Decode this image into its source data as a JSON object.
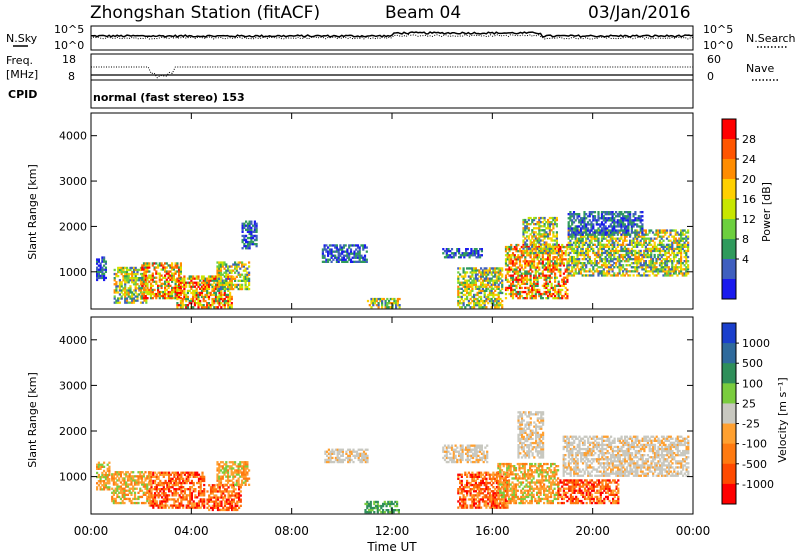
{
  "header": {
    "station": "Zhongshan Station (fitACF)",
    "beam": "Beam 04",
    "date": "03/Jan/2016"
  },
  "noise_panel": {
    "left_label": "N.Sky",
    "left_ticks": [
      "10^5",
      "10^0"
    ],
    "right_label": "N.Search",
    "right_ticks": [
      "10^5",
      "10^0"
    ]
  },
  "freq_panel": {
    "left_label_1": "Freq.",
    "left_label_2": "[MHz]",
    "left_ticks": [
      "18",
      "8"
    ],
    "right_label": "Nave",
    "right_ticks": [
      "60",
      "0"
    ]
  },
  "cpid_panel": {
    "label": "CPID",
    "text": "normal (fast stereo) 153"
  },
  "x_axis": {
    "title": "Time UT",
    "ticks": [
      "00:00",
      "04:00",
      "08:00",
      "12:00",
      "16:00",
      "20:00",
      "00:00"
    ]
  },
  "power_panel": {
    "ylabel": "Slant Range [km]",
    "yticks": [
      "1000",
      "2000",
      "3000",
      "4000"
    ],
    "colorbar_title": "Power [dB]",
    "colorbar_ticks": [
      "28",
      "24",
      "20",
      "16",
      "12",
      "8",
      "4"
    ],
    "colors": [
      "#ff0000",
      "#ff5500",
      "#ff8c00",
      "#ffd000",
      "#c8e600",
      "#6ccf3e",
      "#2f9a5c",
      "#3f5fbf",
      "#1a1aee"
    ]
  },
  "velocity_panel": {
    "ylabel": "Slant Range [km]",
    "yticks": [
      "1000",
      "2000",
      "3000",
      "4000"
    ],
    "colorbar_title": "Velocity [m s⁻¹]",
    "colorbar_ticks": [
      "1000",
      "500",
      "100",
      "25",
      "-25",
      "-100",
      "-500",
      "-1000"
    ],
    "colors": [
      "#1a3fcc",
      "#2f6a9c",
      "#2f8f5a",
      "#7acc3e",
      "#c8c8c0",
      "#ffa030",
      "#ff7a10",
      "#ff4a00",
      "#ff0000"
    ]
  },
  "chart_data": {
    "type": "heatmap",
    "x_range_hours": [
      0,
      24
    ],
    "y_range_km": [
      180,
      4500
    ],
    "power_patches": [
      {
        "t": [
          0.2,
          0.6
        ],
        "r": [
          800,
          1300
        ],
        "level": "low"
      },
      {
        "t": [
          0.9,
          2.2
        ],
        "r": [
          300,
          1100
        ],
        "level": "mid"
      },
      {
        "t": [
          2.0,
          3.6
        ],
        "r": [
          400,
          1200
        ],
        "level": "high"
      },
      {
        "t": [
          3.4,
          5.6
        ],
        "r": [
          200,
          900
        ],
        "level": "high"
      },
      {
        "t": [
          5.0,
          6.3
        ],
        "r": [
          600,
          1200
        ],
        "level": "mid"
      },
      {
        "t": [
          6.0,
          6.6
        ],
        "r": [
          1500,
          2100
        ],
        "level": "low"
      },
      {
        "t": [
          9.2,
          11.0
        ],
        "r": [
          1200,
          1600
        ],
        "level": "low"
      },
      {
        "t": [
          11.0,
          12.3
        ],
        "r": [
          200,
          400
        ],
        "level": "mid"
      },
      {
        "t": [
          14.0,
          15.6
        ],
        "r": [
          1300,
          1500
        ],
        "level": "low"
      },
      {
        "t": [
          14.6,
          16.4
        ],
        "r": [
          200,
          1100
        ],
        "level": "mid"
      },
      {
        "t": [
          16.5,
          19.0
        ],
        "r": [
          400,
          1600
        ],
        "level": "high"
      },
      {
        "t": [
          17.2,
          18.6
        ],
        "r": [
          1400,
          2200
        ],
        "level": "mid"
      },
      {
        "t": [
          19.0,
          23.8
        ],
        "r": [
          900,
          1900
        ],
        "level": "mid"
      },
      {
        "t": [
          19.0,
          22.0
        ],
        "r": [
          1800,
          2300
        ],
        "level": "low"
      }
    ],
    "velocity_patches": [
      {
        "t": [
          0.2,
          0.7
        ],
        "r": [
          700,
          1300
        ],
        "band": "-100"
      },
      {
        "t": [
          0.8,
          2.4
        ],
        "r": [
          400,
          1100
        ],
        "band": "-100"
      },
      {
        "t": [
          2.3,
          4.5
        ],
        "r": [
          300,
          1100
        ],
        "band": "-500"
      },
      {
        "t": [
          4.6,
          6.0
        ],
        "r": [
          250,
          800
        ],
        "band": "-500"
      },
      {
        "t": [
          5.0,
          6.3
        ],
        "r": [
          800,
          1300
        ],
        "band": "-100"
      },
      {
        "t": [
          9.3,
          11.0
        ],
        "r": [
          1300,
          1600
        ],
        "band": "-25"
      },
      {
        "t": [
          10.9,
          12.3
        ],
        "r": [
          200,
          450
        ],
        "band": "100"
      },
      {
        "t": [
          14.0,
          15.8
        ],
        "r": [
          1300,
          1700
        ],
        "band": "-25"
      },
      {
        "t": [
          14.6,
          16.6
        ],
        "r": [
          300,
          1100
        ],
        "band": "-500"
      },
      {
        "t": [
          16.2,
          18.6
        ],
        "r": [
          400,
          1300
        ],
        "band": "-100"
      },
      {
        "t": [
          17.0,
          18.0
        ],
        "r": [
          1400,
          2400
        ],
        "band": "-25"
      },
      {
        "t": [
          18.8,
          23.8
        ],
        "r": [
          1000,
          1900
        ],
        "band": "-25"
      },
      {
        "t": [
          18.6,
          21.0
        ],
        "r": [
          400,
          900
        ],
        "band": "-500"
      }
    ]
  }
}
